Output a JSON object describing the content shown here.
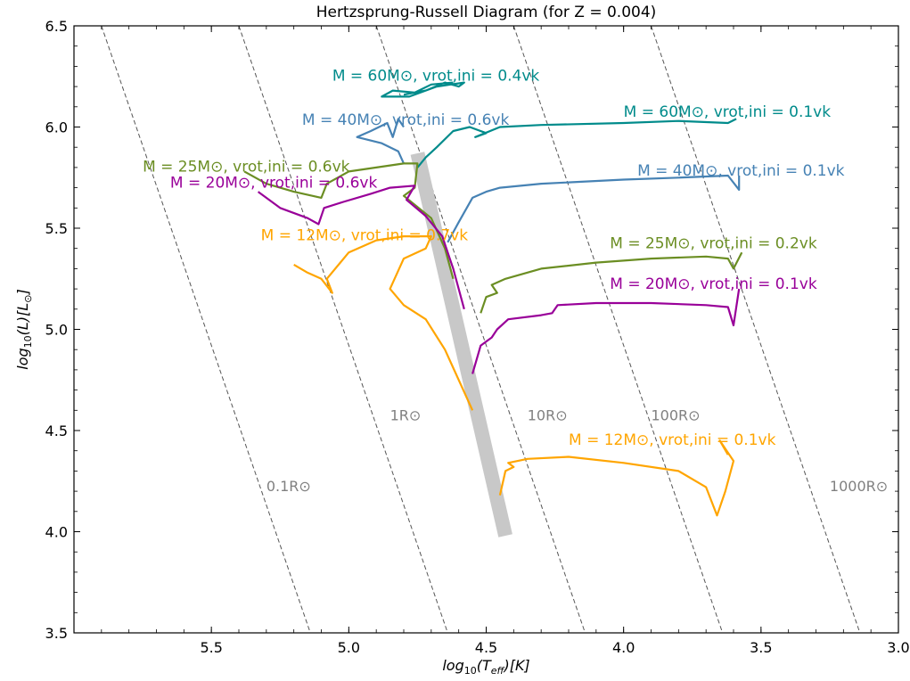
{
  "chart_data": {
    "type": "line",
    "title": "Hertzsprung-Russell Diagram (for Z = 0.004)",
    "xlabel": "log10(Teff)[K]",
    "ylabel": "log10(L)[L⊙]",
    "xlim": [
      6.0,
      3.0
    ],
    "ylim": [
      3.5,
      6.5
    ],
    "x_reversed": true,
    "grid": false,
    "xticks": [
      5.5,
      5.0,
      4.5,
      4.0,
      3.5,
      3.0
    ],
    "yticks": [
      3.5,
      4.0,
      4.5,
      5.0,
      5.5,
      6.0,
      6.5
    ],
    "xtick_labels": [
      "5.5",
      "5.0",
      "4.5",
      "4.0",
      "3.5",
      "3.0"
    ],
    "ytick_labels": [
      "3.5",
      "4.0",
      "4.5",
      "5.0",
      "5.5",
      "6.0",
      "6.5"
    ],
    "radius_lines": [
      {
        "label": "0.1R⊙",
        "points": [
          [
            5.9,
            6.5
          ],
          [
            5.14,
            3.5
          ]
        ],
        "label_pos": [
          5.3,
          4.2
        ]
      },
      {
        "label": "1R⊙",
        "points": [
          [
            5.4,
            6.5
          ],
          [
            4.64,
            3.5
          ]
        ],
        "label_pos": [
          4.85,
          4.55
        ]
      },
      {
        "label": "10R⊙",
        "points": [
          [
            4.9,
            6.5
          ],
          [
            4.14,
            3.5
          ]
        ],
        "label_pos": [
          4.35,
          4.55
        ]
      },
      {
        "label": "100R⊙",
        "points": [
          [
            4.4,
            6.5
          ],
          [
            3.64,
            3.5
          ]
        ],
        "label_pos": [
          3.9,
          4.55
        ]
      },
      {
        "label": "1000R⊙",
        "points": [
          [
            3.9,
            6.5
          ],
          [
            3.14,
            3.5
          ]
        ],
        "label_pos": [
          3.25,
          4.2
        ]
      }
    ],
    "zams_band": {
      "points": [
        [
          4.75,
          5.87
        ],
        [
          4.43,
          3.98
        ]
      ],
      "color": "#c8c8c8"
    },
    "series": [
      {
        "name": "M = 60M⊙, vrot,ini = 0.4vk",
        "color": "#008b8b",
        "points": [
          [
            4.8,
            6.16
          ],
          [
            4.72,
            6.18
          ],
          [
            4.65,
            6.22
          ],
          [
            4.6,
            6.2
          ],
          [
            4.58,
            6.22
          ],
          [
            4.68,
            6.2
          ],
          [
            4.78,
            6.15
          ],
          [
            4.88,
            6.15
          ],
          [
            4.84,
            6.18
          ],
          [
            4.76,
            6.17
          ],
          [
            4.7,
            6.21
          ],
          [
            4.62,
            6.22
          ]
        ]
      },
      {
        "name": "M = 60M⊙, vrot,ini = 0.1vk",
        "color": "#008b8b",
        "points": [
          [
            4.75,
            5.8
          ],
          [
            4.72,
            5.85
          ],
          [
            4.68,
            5.9
          ],
          [
            4.62,
            5.98
          ],
          [
            4.56,
            6.0
          ],
          [
            4.5,
            5.97
          ],
          [
            4.54,
            5.95
          ],
          [
            4.45,
            6.0
          ],
          [
            4.3,
            6.01
          ],
          [
            4.0,
            6.02
          ],
          [
            3.8,
            6.03
          ],
          [
            3.62,
            6.02
          ],
          [
            3.59,
            6.04
          ]
        ]
      },
      {
        "name": "M = 40M⊙, vrot,ini = 0.6vk",
        "color": "#4682b4",
        "points": [
          [
            4.8,
            5.82
          ],
          [
            4.82,
            5.88
          ],
          [
            4.88,
            5.92
          ],
          [
            4.97,
            5.95
          ],
          [
            4.92,
            5.98
          ],
          [
            4.86,
            6.02
          ],
          [
            4.84,
            5.95
          ],
          [
            4.82,
            6.04
          ],
          [
            4.8,
            6.0
          ]
        ]
      },
      {
        "name": "M = 40M⊙, vrot,ini = 0.1vk",
        "color": "#4682b4",
        "points": [
          [
            4.64,
            5.43
          ],
          [
            4.6,
            5.53
          ],
          [
            4.55,
            5.65
          ],
          [
            4.5,
            5.68
          ],
          [
            4.45,
            5.7
          ],
          [
            4.3,
            5.72
          ],
          [
            4.0,
            5.74
          ],
          [
            3.8,
            5.75
          ],
          [
            3.62,
            5.76
          ],
          [
            3.58,
            5.69
          ],
          [
            3.58,
            5.76
          ]
        ]
      },
      {
        "name": "M = 25M⊙, vrot,ini = 0.6vk",
        "color": "#6b8e23",
        "points": [
          [
            5.38,
            5.78
          ],
          [
            5.3,
            5.72
          ],
          [
            5.2,
            5.68
          ],
          [
            5.1,
            5.65
          ],
          [
            5.08,
            5.72
          ],
          [
            5.0,
            5.78
          ],
          [
            4.9,
            5.8
          ],
          [
            4.8,
            5.82
          ],
          [
            4.75,
            5.82
          ],
          [
            4.76,
            5.7
          ],
          [
            4.8,
            5.66
          ],
          [
            4.7,
            5.55
          ],
          [
            4.65,
            5.4
          ],
          [
            4.62,
            5.25
          ]
        ]
      },
      {
        "name": "M = 25M⊙, vrot,ini = 0.2vk",
        "color": "#6b8e23",
        "points": [
          [
            4.52,
            5.08
          ],
          [
            4.5,
            5.16
          ],
          [
            4.46,
            5.18
          ],
          [
            4.48,
            5.22
          ],
          [
            4.43,
            5.25
          ],
          [
            4.3,
            5.3
          ],
          [
            4.1,
            5.33
          ],
          [
            3.9,
            5.35
          ],
          [
            3.7,
            5.36
          ],
          [
            3.62,
            5.35
          ],
          [
            3.6,
            5.3
          ],
          [
            3.57,
            5.38
          ]
        ]
      },
      {
        "name": "M = 20M⊙, vrot,ini = 0.6vk",
        "color": "#990099",
        "points": [
          [
            5.33,
            5.68
          ],
          [
            5.25,
            5.6
          ],
          [
            5.15,
            5.55
          ],
          [
            5.11,
            5.52
          ],
          [
            5.09,
            5.6
          ],
          [
            5.02,
            5.63
          ],
          [
            4.92,
            5.67
          ],
          [
            4.85,
            5.7
          ],
          [
            4.76,
            5.71
          ],
          [
            4.79,
            5.64
          ],
          [
            4.72,
            5.56
          ],
          [
            4.66,
            5.46
          ],
          [
            4.62,
            5.3
          ],
          [
            4.58,
            5.1
          ]
        ]
      },
      {
        "name": "M = 20M⊙, vrot,ini = 0.1vk",
        "color": "#990099",
        "points": [
          [
            4.55,
            4.78
          ],
          [
            4.52,
            4.92
          ],
          [
            4.48,
            4.96
          ],
          [
            4.46,
            5.0
          ],
          [
            4.42,
            5.05
          ],
          [
            4.3,
            5.07
          ],
          [
            4.26,
            5.08
          ],
          [
            4.24,
            5.12
          ],
          [
            4.1,
            5.13
          ],
          [
            3.9,
            5.13
          ],
          [
            3.7,
            5.12
          ],
          [
            3.62,
            5.11
          ],
          [
            3.6,
            5.02
          ],
          [
            3.58,
            5.2
          ]
        ]
      },
      {
        "name": "M = 12M⊙, vrot,ini = 0.7vk",
        "color": "#ffa500",
        "points": [
          [
            5.2,
            5.32
          ],
          [
            5.15,
            5.28
          ],
          [
            5.1,
            5.25
          ],
          [
            5.06,
            5.18
          ],
          [
            5.08,
            5.25
          ],
          [
            5.0,
            5.38
          ],
          [
            4.9,
            5.44
          ],
          [
            4.8,
            5.46
          ],
          [
            4.7,
            5.46
          ],
          [
            4.72,
            5.4
          ],
          [
            4.8,
            5.35
          ],
          [
            4.85,
            5.2
          ],
          [
            4.8,
            5.12
          ],
          [
            4.72,
            5.05
          ],
          [
            4.65,
            4.9
          ],
          [
            4.55,
            4.6
          ]
        ]
      },
      {
        "name": "M = 12M⊙, vrot,ini = 0.1vk",
        "color": "#ffa500",
        "points": [
          [
            4.45,
            4.18
          ],
          [
            4.43,
            4.3
          ],
          [
            4.4,
            4.32
          ],
          [
            4.42,
            4.34
          ],
          [
            4.35,
            4.36
          ],
          [
            4.2,
            4.37
          ],
          [
            4.0,
            4.34
          ],
          [
            3.8,
            4.3
          ],
          [
            3.7,
            4.22
          ],
          [
            3.66,
            4.08
          ],
          [
            3.63,
            4.2
          ],
          [
            3.6,
            4.35
          ],
          [
            3.65,
            4.45
          ],
          [
            3.62,
            4.38
          ]
        ]
      }
    ],
    "track_labels": [
      {
        "text": "M = 60M⊙, vrot,ini = 0.4vk",
        "color": "#008b8b",
        "pos": [
          5.06,
          6.23
        ]
      },
      {
        "text": "M = 40M⊙, vrot,ini = 0.6vk",
        "color": "#4682b4",
        "pos": [
          5.17,
          6.01
        ]
      },
      {
        "text": "M = 60M⊙, vrot,ini = 0.1vk",
        "color": "#008b8b",
        "pos": [
          4.0,
          6.05
        ]
      },
      {
        "text": "M = 25M⊙, vrot,ini = 0.6vk",
        "color": "#6b8e23",
        "pos": [
          5.75,
          5.78
        ]
      },
      {
        "text": "M = 40M⊙, vrot,ini = 0.1vk",
        "color": "#4682b4",
        "pos": [
          3.95,
          5.76
        ]
      },
      {
        "text": "M = 20M⊙, vrot,ini = 0.6vk",
        "color": "#990099",
        "pos": [
          5.65,
          5.7
        ]
      },
      {
        "text": "M = 12M⊙, vrot,ini = 0.7vk",
        "color": "#ffa500",
        "pos": [
          5.32,
          5.44
        ]
      },
      {
        "text": "M = 25M⊙, vrot,ini = 0.2vk",
        "color": "#6b8e23",
        "pos": [
          4.05,
          5.4
        ]
      },
      {
        "text": "M = 20M⊙, vrot,ini = 0.1vk",
        "color": "#990099",
        "pos": [
          4.05,
          5.2
        ]
      },
      {
        "text": "M = 12M⊙, vrot,ini = 0.1vk",
        "color": "#ffa500",
        "pos": [
          4.2,
          4.43
        ]
      }
    ]
  }
}
